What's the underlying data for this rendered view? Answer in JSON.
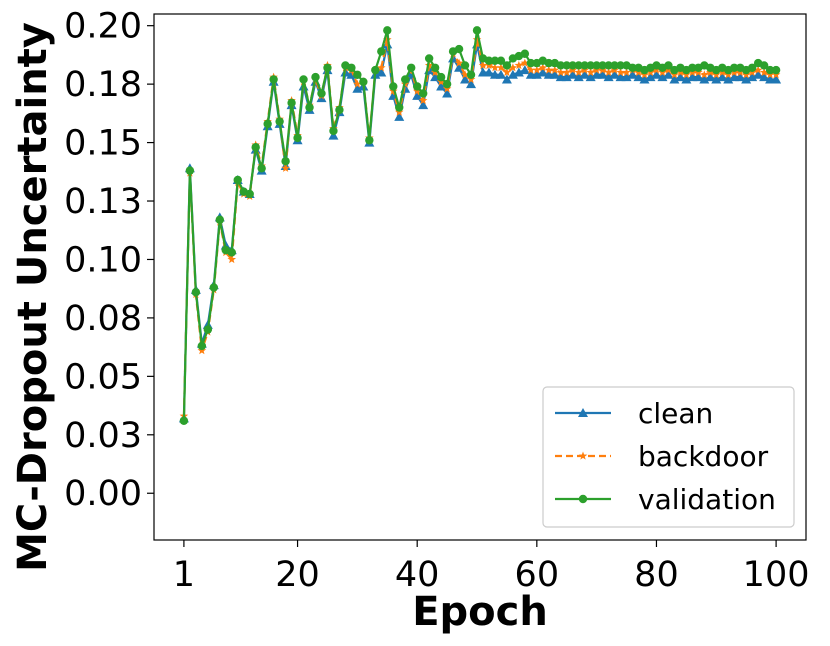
{
  "chart_data": {
    "type": "line",
    "xlabel": "Epoch",
    "ylabel": "MC-Dropout Uncertainty",
    "xlim": [
      -4,
      105
    ],
    "ylim": [
      -0.02,
      0.205
    ],
    "x_ticks": [
      1,
      20,
      40,
      60,
      80,
      100
    ],
    "y_ticks": [
      0.0,
      0.025,
      0.05,
      0.075,
      0.1,
      0.125,
      0.15,
      0.175,
      0.2
    ],
    "y_tick_labels": [
      "0.00",
      "0.03",
      "0.05",
      "0.08",
      "0.10",
      "0.13",
      "0.15",
      "0.18",
      "0.20"
    ],
    "legend_position": "lower-right",
    "x": [
      1,
      2,
      3,
      4,
      5,
      6,
      7,
      8,
      9,
      10,
      11,
      12,
      13,
      14,
      15,
      16,
      17,
      18,
      19,
      20,
      21,
      22,
      23,
      24,
      25,
      26,
      27,
      28,
      29,
      30,
      31,
      32,
      33,
      34,
      35,
      36,
      37,
      38,
      39,
      40,
      41,
      42,
      43,
      44,
      45,
      46,
      47,
      48,
      49,
      50,
      51,
      52,
      53,
      54,
      55,
      56,
      57,
      58,
      59,
      60,
      61,
      62,
      63,
      64,
      65,
      66,
      67,
      68,
      69,
      70,
      71,
      72,
      73,
      74,
      75,
      76,
      77,
      78,
      79,
      80,
      81,
      82,
      83,
      84,
      85,
      86,
      87,
      88,
      89,
      90,
      91,
      92,
      93,
      94,
      95,
      96,
      97,
      98,
      99,
      100
    ],
    "series": [
      {
        "name": "clean",
        "color": "#1f77b4",
        "marker": "triangle",
        "dash": "solid",
        "values": [
          0.032,
          0.139,
          0.087,
          0.064,
          0.072,
          0.089,
          0.118,
          0.106,
          0.104,
          0.134,
          0.129,
          0.128,
          0.147,
          0.138,
          0.157,
          0.176,
          0.158,
          0.14,
          0.166,
          0.151,
          0.174,
          0.164,
          0.176,
          0.169,
          0.181,
          0.153,
          0.163,
          0.18,
          0.179,
          0.173,
          0.174,
          0.15,
          0.179,
          0.18,
          0.192,
          0.17,
          0.161,
          0.173,
          0.179,
          0.17,
          0.166,
          0.181,
          0.178,
          0.174,
          0.171,
          0.186,
          0.182,
          0.177,
          0.175,
          0.192,
          0.18,
          0.18,
          0.179,
          0.179,
          0.177,
          0.179,
          0.18,
          0.181,
          0.179,
          0.179,
          0.18,
          0.179,
          0.179,
          0.178,
          0.178,
          0.179,
          0.178,
          0.179,
          0.178,
          0.179,
          0.179,
          0.178,
          0.179,
          0.178,
          0.178,
          0.179,
          0.178,
          0.177,
          0.178,
          0.179,
          0.178,
          0.179,
          0.177,
          0.178,
          0.177,
          0.178,
          0.178,
          0.177,
          0.178,
          0.177,
          0.178,
          0.177,
          0.178,
          0.178,
          0.177,
          0.178,
          0.179,
          0.178,
          0.177,
          0.177
        ]
      },
      {
        "name": "backdoor",
        "color": "#ff7f0e",
        "marker": "star",
        "dash": "dashed",
        "values": [
          0.033,
          0.137,
          0.085,
          0.061,
          0.069,
          0.087,
          0.116,
          0.103,
          0.1,
          0.133,
          0.128,
          0.127,
          0.149,
          0.14,
          0.159,
          0.178,
          0.16,
          0.139,
          0.168,
          0.153,
          0.176,
          0.166,
          0.177,
          0.17,
          0.183,
          0.156,
          0.165,
          0.182,
          0.181,
          0.175,
          0.176,
          0.152,
          0.181,
          0.182,
          0.194,
          0.172,
          0.163,
          0.175,
          0.181,
          0.172,
          0.168,
          0.183,
          0.18,
          0.176,
          0.173,
          0.188,
          0.184,
          0.179,
          0.177,
          0.194,
          0.183,
          0.183,
          0.182,
          0.182,
          0.18,
          0.182,
          0.183,
          0.184,
          0.181,
          0.181,
          0.182,
          0.181,
          0.181,
          0.18,
          0.18,
          0.181,
          0.18,
          0.181,
          0.18,
          0.181,
          0.181,
          0.18,
          0.181,
          0.18,
          0.18,
          0.181,
          0.18,
          0.179,
          0.18,
          0.181,
          0.18,
          0.181,
          0.179,
          0.18,
          0.179,
          0.18,
          0.18,
          0.179,
          0.18,
          0.179,
          0.18,
          0.179,
          0.18,
          0.18,
          0.179,
          0.18,
          0.181,
          0.18,
          0.179,
          0.179
        ]
      },
      {
        "name": "validation",
        "color": "#2ca02c",
        "marker": "circle",
        "dash": "solid",
        "values": [
          0.031,
          0.138,
          0.086,
          0.063,
          0.07,
          0.088,
          0.117,
          0.104,
          0.103,
          0.134,
          0.129,
          0.128,
          0.148,
          0.139,
          0.158,
          0.177,
          0.159,
          0.142,
          0.167,
          0.152,
          0.177,
          0.165,
          0.178,
          0.171,
          0.182,
          0.155,
          0.164,
          0.183,
          0.182,
          0.179,
          0.176,
          0.151,
          0.181,
          0.189,
          0.198,
          0.174,
          0.165,
          0.177,
          0.182,
          0.174,
          0.171,
          0.186,
          0.182,
          0.178,
          0.175,
          0.189,
          0.19,
          0.183,
          0.179,
          0.198,
          0.186,
          0.185,
          0.185,
          0.185,
          0.183,
          0.186,
          0.187,
          0.188,
          0.184,
          0.184,
          0.185,
          0.184,
          0.184,
          0.183,
          0.183,
          0.183,
          0.183,
          0.183,
          0.183,
          0.183,
          0.183,
          0.183,
          0.183,
          0.183,
          0.183,
          0.182,
          0.182,
          0.181,
          0.182,
          0.183,
          0.182,
          0.183,
          0.181,
          0.182,
          0.181,
          0.182,
          0.182,
          0.183,
          0.182,
          0.181,
          0.182,
          0.181,
          0.182,
          0.182,
          0.181,
          0.182,
          0.184,
          0.183,
          0.181,
          0.181
        ]
      }
    ]
  }
}
